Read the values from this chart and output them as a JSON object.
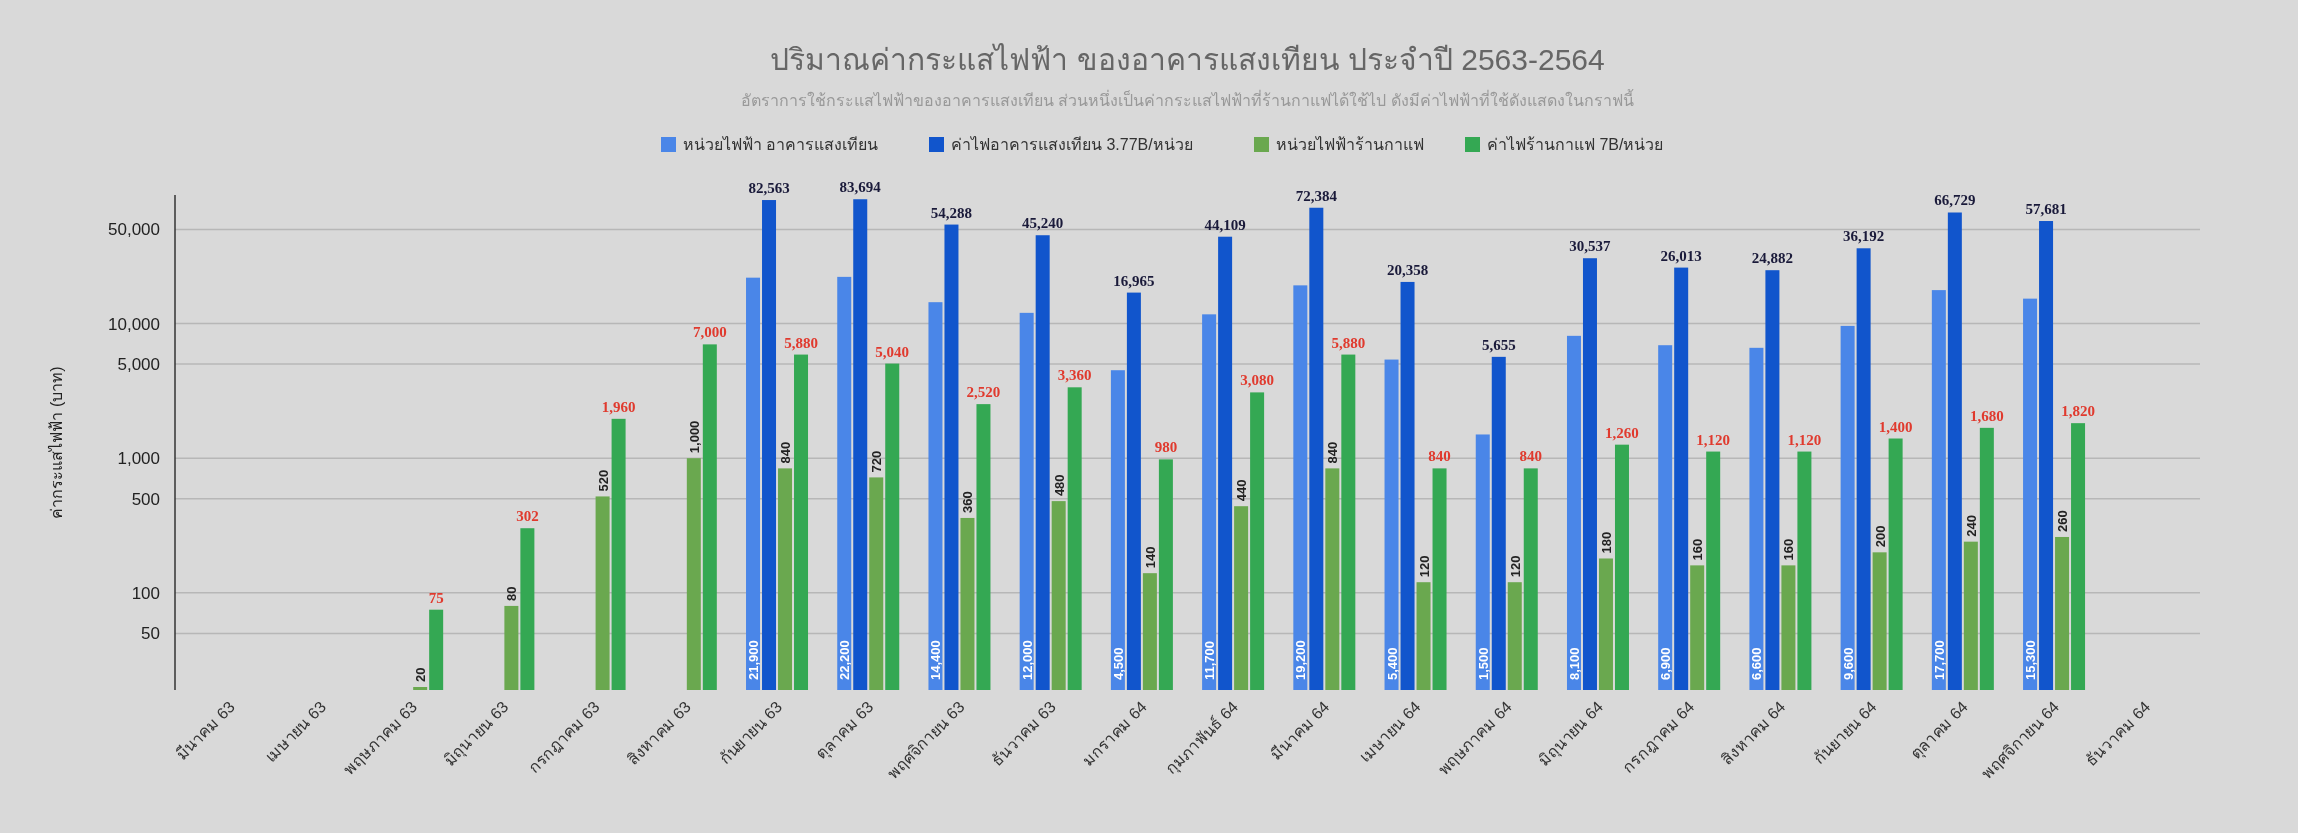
{
  "chart_data": {
    "type": "bar",
    "title": "ปริมาณค่ากระแสไฟฟ้า ของอาคารแสงเทียน ประจำปี 2563-2564",
    "subtitle": "อัตราการใช้กระแสไฟฟ้าของอาคารแสงเทียน ส่วนหนึ่งเป็นค่ากระแสไฟฟ้าที่ร้านกาแฟได้ใช้ไป ดังมีค่าไฟฟ้าที่ใช้ดังแสดงในกราฟนี้",
    "ylabel": "ค่ากระแสไฟฟ้า (บาท)",
    "categories": [
      "มีนาคม 63",
      "เมษายน 63",
      "พฤษภาคม 63",
      "มิถุนายน 63",
      "กรกฎาคม 63",
      "สิงหาคม 63",
      "กันยายน 63",
      "ตุลาคม 63",
      "พฤศจิกายน 63",
      "ธันวาคม 63",
      "มกราคม 64",
      "กุมภาพันธ์ 64",
      "มีนาคม 64",
      "เมษายน 64",
      "พฤษภาคม 64",
      "มิถุนายน 64",
      "กรกฎาคม 64",
      "สิงหาคม 64",
      "กันยายน 64",
      "ตุลาคม 64",
      "พฤศจิกายน 64",
      "ธันวาคม 64"
    ],
    "series": [
      {
        "name": "หน่วยไฟฟ้า อาคารแสงเทียน",
        "color": "#4a86e8",
        "values": [
          null,
          null,
          null,
          null,
          null,
          null,
          21900,
          22200,
          14400,
          12000,
          4500,
          11700,
          19200,
          5400,
          1500,
          8100,
          6900,
          6600,
          9600,
          17700,
          15300,
          null
        ],
        "value_labels": [
          null,
          null,
          null,
          null,
          null,
          null,
          "21,900",
          "22,200",
          "14,400",
          "12,000",
          "4,500",
          "11,700",
          "19,200",
          "5,400",
          "1,500",
          "8,100",
          "6,900",
          "6,600",
          "9,600",
          "17,700",
          "15,300",
          null
        ]
      },
      {
        "name": "ค่าไฟอาคารแสงเทียน 3.77B/หน่วย",
        "color": "#1155cc",
        "values": [
          null,
          null,
          null,
          null,
          null,
          null,
          82563,
          83694,
          54288,
          45240,
          16965,
          44109,
          72384,
          20358,
          5655,
          30537,
          26013,
          24882,
          36192,
          66729,
          57681,
          null
        ],
        "value_labels": [
          null,
          null,
          null,
          null,
          null,
          null,
          "82,563",
          "83,694",
          "54,288",
          "45,240",
          "16,965",
          "44,109",
          "72,384",
          "20,358",
          "5,655",
          "30,537",
          "26,013",
          "24,882",
          "36,192",
          "66,729",
          "57,681",
          null
        ]
      },
      {
        "name": "หน่วยไฟฟ้าร้านกาแฟ",
        "color": "#6aa84f",
        "values": [
          null,
          null,
          20,
          80,
          520,
          1000,
          840,
          720,
          360,
          480,
          140,
          440,
          840,
          120,
          120,
          180,
          160,
          160,
          200,
          240,
          260,
          null
        ],
        "value_labels": [
          null,
          null,
          "20",
          "80",
          "520",
          "1,000",
          "840",
          "720",
          "360",
          "480",
          "140",
          "440",
          "840",
          "120",
          "120",
          "180",
          "160",
          "160",
          "200",
          "240",
          "260",
          null
        ]
      },
      {
        "name": "ค่าไฟร้านกาแฟ 7B/หน่วย",
        "color": "#34a853",
        "values": [
          null,
          null,
          75,
          302,
          1960,
          7000,
          5880,
          5040,
          2520,
          3360,
          980,
          3080,
          5880,
          840,
          840,
          1260,
          1120,
          1120,
          1400,
          1680,
          1820,
          null
        ],
        "value_labels": [
          null,
          null,
          "75",
          "302",
          "1,960",
          "7,000",
          "5,880",
          "5,040",
          "2,520",
          "3,360",
          "980",
          "3,080",
          "5,880",
          "840",
          "840",
          "1,260",
          "1,120",
          "1,120",
          "1,400",
          "1,680",
          "1,820",
          null
        ]
      }
    ],
    "log": "y",
    "ylim": [
      19,
      90000
    ],
    "yticks": [
      50,
      100,
      500,
      {
        "value": 1000,
        "label": "1,000"
      },
      {
        "value": 5000,
        "label": "5,000"
      },
      {
        "value": 10000,
        "label": "10,000"
      },
      {
        "value": 50000,
        "label": "50,000"
      }
    ],
    "grid": "y",
    "legend": "top"
  }
}
